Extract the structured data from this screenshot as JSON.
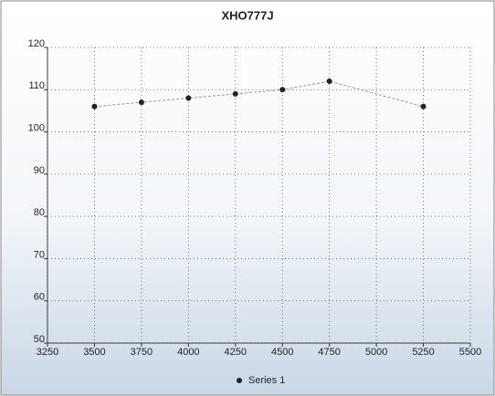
{
  "chart_data": {
    "type": "line",
    "title": "XHO777J",
    "x": [
      3500,
      3750,
      4000,
      4250,
      4500,
      4750,
      5250
    ],
    "series": [
      {
        "name": "Series 1",
        "color": "#222222",
        "line_color": "#999999",
        "values": [
          106,
          107,
          108,
          109,
          110,
          112,
          106
        ]
      }
    ],
    "xlim": [
      3250,
      5500
    ],
    "xticks": [
      3250,
      3500,
      3750,
      4000,
      4250,
      4500,
      4750,
      5000,
      5250,
      5500
    ],
    "ylim": [
      50,
      120
    ],
    "yticks": [
      50,
      60,
      70,
      80,
      90,
      100,
      110,
      120
    ],
    "grid": true,
    "legend": "bottom"
  }
}
